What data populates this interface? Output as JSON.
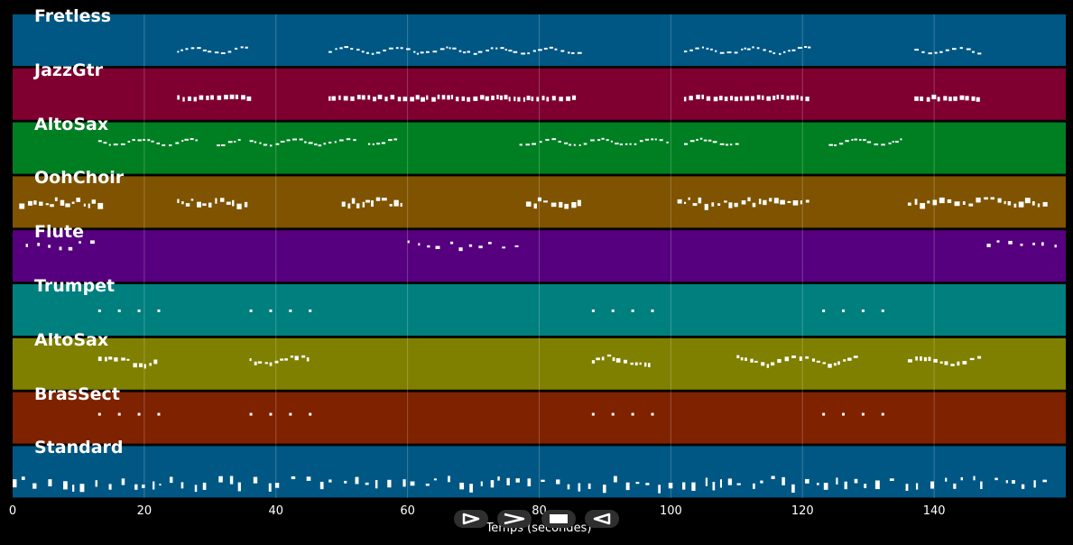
{
  "x_axis": {
    "label": "Temps (secondes)",
    "range": [
      0,
      160
    ],
    "ticks": [
      "0",
      "20",
      "40",
      "60",
      "80",
      "100",
      "120",
      "140"
    ]
  },
  "tracks": [
    {
      "name": "Fretless",
      "color": "#005784",
      "style": "wave",
      "segments": [
        [
          25,
          36
        ],
        [
          48,
          86
        ],
        [
          102,
          121
        ],
        [
          137,
          147
        ]
      ]
    },
    {
      "name": "JazzGtr",
      "color": "#7f0030",
      "style": "ticks",
      "segments": [
        [
          25,
          36
        ],
        [
          48,
          86
        ],
        [
          102,
          121
        ],
        [
          137,
          147
        ]
      ]
    },
    {
      "name": "AltoSax",
      "color": "#007f22",
      "style": "wave",
      "segments": [
        [
          13,
          28
        ],
        [
          31,
          35
        ],
        [
          36,
          52
        ],
        [
          54,
          58
        ],
        [
          77,
          100
        ],
        [
          102,
          110
        ],
        [
          124,
          135
        ]
      ]
    },
    {
      "name": "OohChoir",
      "color": "#7f5300",
      "style": "chords",
      "segments": [
        [
          1,
          13
        ],
        [
          25,
          36
        ],
        [
          50,
          59
        ],
        [
          78,
          86
        ],
        [
          101,
          121
        ],
        [
          136,
          157
        ]
      ]
    },
    {
      "name": "Flute",
      "color": "#56007f",
      "style": "sparse",
      "segments": [
        [
          2,
          12
        ],
        [
          60,
          77
        ],
        [
          148,
          159
        ]
      ]
    },
    {
      "name": "Trumpet",
      "color": "#007f7f",
      "style": "dots",
      "segments": [
        [
          13,
          22
        ],
        [
          36,
          45
        ],
        [
          88,
          97
        ],
        [
          123,
          132
        ]
      ]
    },
    {
      "name": "AltoSax",
      "color": "#7f7f00",
      "style": "mixed",
      "segments": [
        [
          13,
          22
        ],
        [
          36,
          45
        ],
        [
          88,
          97
        ],
        [
          110,
          128
        ],
        [
          136,
          147
        ]
      ]
    },
    {
      "name": "BrasSect",
      "color": "#7f2200",
      "style": "dots",
      "segments": [
        [
          13,
          22
        ],
        [
          36,
          45
        ],
        [
          88,
          97
        ],
        [
          123,
          132
        ]
      ]
    },
    {
      "name": "Standard",
      "color": "#005784",
      "style": "drums",
      "segments": [
        [
          0,
          158
        ]
      ]
    }
  ],
  "transport": {
    "play_icon": "play-icon",
    "forward_icon": "forward-icon",
    "stop_icon": "stop-icon",
    "back_icon": "back-icon"
  }
}
